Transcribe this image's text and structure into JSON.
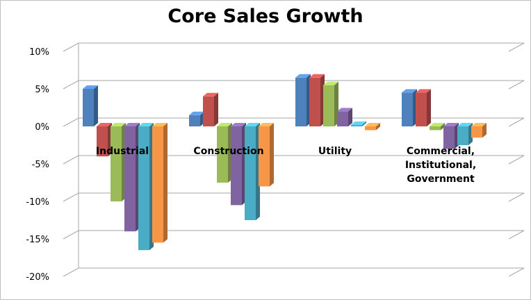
{
  "chart_data": {
    "type": "bar",
    "title": "Core Sales Growth",
    "xlabel": "",
    "ylabel": "",
    "categories": [
      "Industrial",
      "Construction",
      "Utility",
      "Commercial, Institutional, Government"
    ],
    "y_ticks": [
      "10%",
      "5%",
      "0%",
      "-5%",
      "-10%",
      "-15%",
      "-20%"
    ],
    "ylim": [
      -20,
      10
    ],
    "grid": true,
    "legend": "none",
    "series": [
      {
        "color": "#4f81bd",
        "values": [
          5,
          1.5,
          6.5,
          4.5
        ]
      },
      {
        "color": "#c0504d",
        "values": [
          -4,
          4,
          6.5,
          4.5
        ]
      },
      {
        "color": "#9bbb59",
        "values": [
          -10,
          -7.5,
          5.5,
          -0.5
        ]
      },
      {
        "color": "#8064a2",
        "values": [
          -14,
          -10.5,
          2,
          -3
        ]
      },
      {
        "color": "#4bacc6",
        "values": [
          -16.5,
          -12.5,
          0.2,
          -2.5
        ]
      },
      {
        "color": "#f79646",
        "values": [
          -15.5,
          -8,
          -0.5,
          -1.5
        ]
      }
    ]
  }
}
